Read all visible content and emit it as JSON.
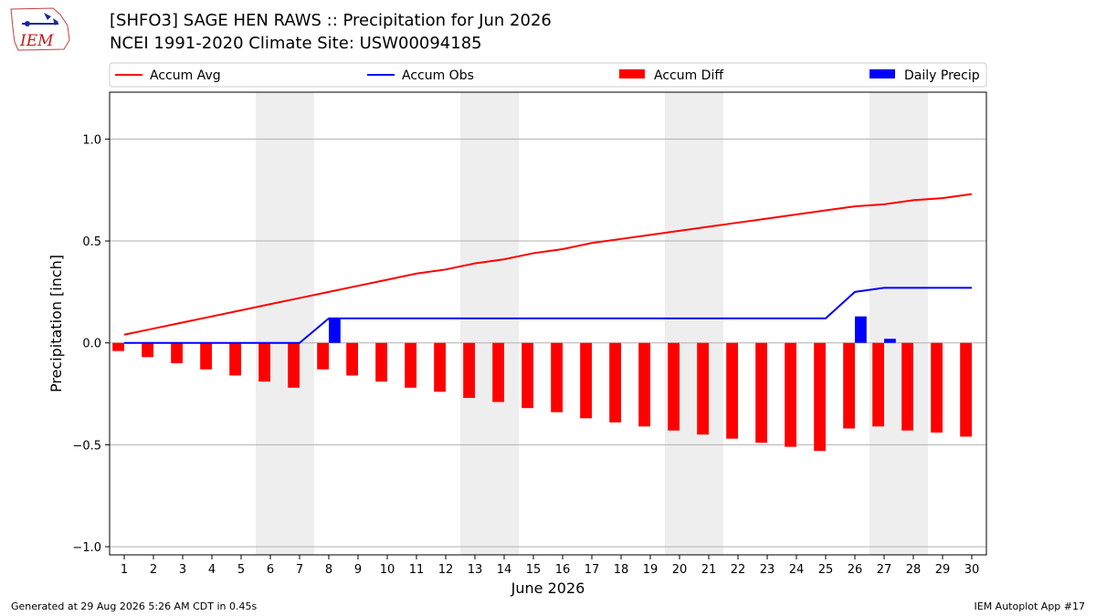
{
  "header": {
    "title_line1": "[SHFO3] SAGE HEN RAWS :: Precipitation for Jun 2026",
    "title_line2": "NCEI 1991-2020 Climate Site: USW00094185",
    "logo_text": "IEM"
  },
  "footer": {
    "generated": "Generated at 29 Aug 2026 5:26 AM CDT in 0.45s",
    "app": "IEM Autoplot App #17"
  },
  "colors": {
    "accum_avg": "#ff0000",
    "accum_obs": "#0000ff",
    "accum_diff": "#ff0000",
    "daily_precip": "#0000ff",
    "weekend_shade": "#eeeeee",
    "grid": "#b0b0b0"
  },
  "chart_data": {
    "type": "bar",
    "title": "[SHFO3] SAGE HEN RAWS :: Precipitation for Jun 2026",
    "subtitle": "NCEI 1991-2020 Climate Site: USW00094185",
    "xlabel": "June 2026",
    "ylabel": "Precipitation [inch]",
    "x": [
      1,
      2,
      3,
      4,
      5,
      6,
      7,
      8,
      9,
      10,
      11,
      12,
      13,
      14,
      15,
      16,
      17,
      18,
      19,
      20,
      21,
      22,
      23,
      24,
      25,
      26,
      27,
      28,
      29,
      30
    ],
    "xlim": [
      0.5,
      30.5
    ],
    "ylim": [
      -1.04,
      1.23
    ],
    "yticks": [
      -1.0,
      -0.5,
      0.0,
      0.5,
      1.0
    ],
    "ytick_labels": [
      "−1.0",
      "−0.5",
      "0.0",
      "0.5",
      "1.0"
    ],
    "grid": "horizontal",
    "legend_position": "top",
    "weekend_spans": [
      [
        5.5,
        7.5
      ],
      [
        12.5,
        14.5
      ],
      [
        19.5,
        21.5
      ],
      [
        26.5,
        28.5
      ]
    ],
    "series": [
      {
        "name": "Accum Avg",
        "kind": "line",
        "values": [
          0.04,
          0.07,
          0.1,
          0.13,
          0.16,
          0.19,
          0.22,
          0.25,
          0.28,
          0.31,
          0.34,
          0.36,
          0.39,
          0.41,
          0.44,
          0.46,
          0.49,
          0.51,
          0.53,
          0.55,
          0.57,
          0.59,
          0.61,
          0.63,
          0.65,
          0.67,
          0.68,
          0.7,
          0.71,
          0.73
        ]
      },
      {
        "name": "Accum Obs",
        "kind": "line",
        "values": [
          0,
          0,
          0,
          0,
          0,
          0,
          0,
          0.12,
          0.12,
          0.12,
          0.12,
          0.12,
          0.12,
          0.12,
          0.12,
          0.12,
          0.12,
          0.12,
          0.12,
          0.12,
          0.12,
          0.12,
          0.12,
          0.12,
          0.12,
          0.25,
          0.27,
          0.27,
          0.27,
          0.27
        ]
      },
      {
        "name": "Accum Diff",
        "kind": "bar",
        "values": [
          -0.04,
          -0.07,
          -0.1,
          -0.13,
          -0.16,
          -0.19,
          -0.22,
          -0.13,
          -0.16,
          -0.19,
          -0.22,
          -0.24,
          -0.27,
          -0.29,
          -0.32,
          -0.34,
          -0.37,
          -0.39,
          -0.41,
          -0.43,
          -0.45,
          -0.47,
          -0.49,
          -0.51,
          -0.53,
          -0.42,
          -0.41,
          -0.43,
          -0.44,
          -0.46
        ]
      },
      {
        "name": "Daily Precip",
        "kind": "bar",
        "values": [
          0,
          0,
          0,
          0,
          0,
          0,
          0,
          0.12,
          0,
          0,
          0,
          0,
          0,
          0,
          0,
          0,
          0,
          0,
          0,
          0,
          0,
          0,
          0,
          0,
          0,
          0.13,
          0.02,
          0,
          0,
          0
        ]
      }
    ]
  }
}
